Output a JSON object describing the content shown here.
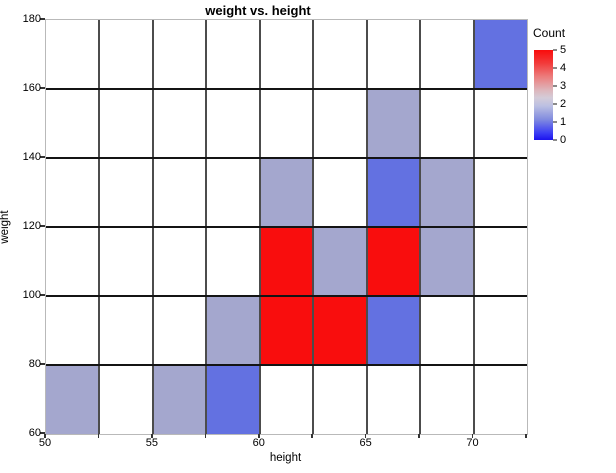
{
  "title": "weight vs. height",
  "chart_data": {
    "type": "heatmap",
    "title": "weight vs. height",
    "xlabel": "height",
    "ylabel": "weight",
    "xlim": [
      50,
      72.5
    ],
    "ylim": [
      60,
      180
    ],
    "x_bin_size": 2.5,
    "y_bin_size": 20,
    "x_tick_labels": [
      50,
      55,
      60,
      65,
      70
    ],
    "y_tick_labels": [
      180,
      160,
      140,
      120,
      100,
      80,
      60
    ],
    "grid": true,
    "cells": [
      {
        "height": 70,
        "weight": 160,
        "count": 1
      },
      {
        "height": 65,
        "weight": 140,
        "count": 2
      },
      {
        "height": 60,
        "weight": 120,
        "count": 2
      },
      {
        "height": 65,
        "weight": 120,
        "count": 1
      },
      {
        "height": 67.5,
        "weight": 120,
        "count": 2
      },
      {
        "height": 60,
        "weight": 100,
        "count": 5
      },
      {
        "height": 62.5,
        "weight": 100,
        "count": 2
      },
      {
        "height": 65,
        "weight": 100,
        "count": 5
      },
      {
        "height": 67.5,
        "weight": 100,
        "count": 2
      },
      {
        "height": 57.5,
        "weight": 80,
        "count": 2
      },
      {
        "height": 60,
        "weight": 80,
        "count": 5
      },
      {
        "height": 62.5,
        "weight": 80,
        "count": 5
      },
      {
        "height": 65,
        "weight": 80,
        "count": 1
      },
      {
        "height": 50,
        "weight": 60,
        "count": 2
      },
      {
        "height": 55,
        "weight": 60,
        "count": 2
      },
      {
        "height": 57.5,
        "weight": 60,
        "count": 1
      }
    ],
    "count_colors": {
      "1": "#6371e1",
      "2": "#a4a7ce",
      "5": "#f90d0d"
    },
    "colorbar": {
      "label": "Count",
      "min": 0,
      "max": 5,
      "ticks": [
        5,
        4,
        3,
        2,
        1,
        0
      ],
      "gradient_stops": [
        {
          "pos": 0,
          "color": "#f90c0c"
        },
        {
          "pos": 15,
          "color": "#f23c3c"
        },
        {
          "pos": 30,
          "color": "#ec7e7e"
        },
        {
          "pos": 45,
          "color": "#ddb7bd"
        },
        {
          "pos": 53,
          "color": "#d4ccd8"
        },
        {
          "pos": 62,
          "color": "#bcc0e2"
        },
        {
          "pos": 77,
          "color": "#828cdf"
        },
        {
          "pos": 92,
          "color": "#3c3ef4"
        },
        {
          "pos": 100,
          "color": "#1c12ee"
        }
      ]
    }
  }
}
